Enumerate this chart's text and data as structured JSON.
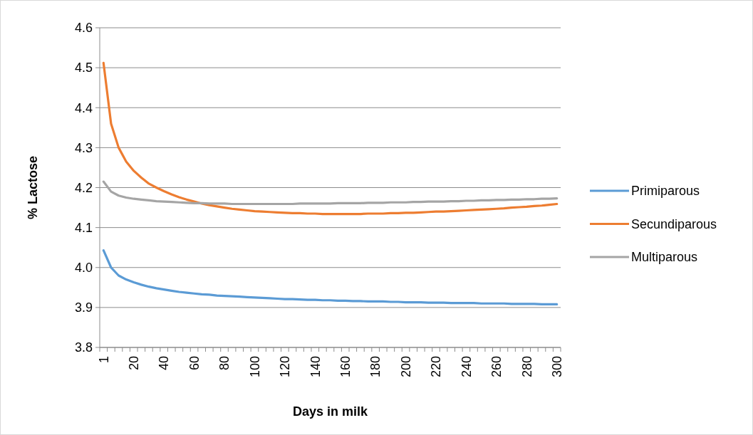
{
  "chart_data": {
    "type": "line",
    "xlabel": "Days in milk",
    "ylabel": "% Lactose",
    "categories": [
      "1",
      null,
      null,
      null,
      "20",
      null,
      null,
      null,
      "40",
      null,
      null,
      null,
      "60",
      null,
      null,
      null,
      "80",
      null,
      null,
      null,
      "100",
      null,
      null,
      null,
      "120",
      null,
      null,
      null,
      "140",
      null,
      null,
      null,
      "160",
      null,
      null,
      null,
      "180",
      null,
      null,
      null,
      "200",
      null,
      null,
      null,
      "220",
      null,
      null,
      null,
      "240",
      null,
      null,
      null,
      "260",
      null,
      null,
      null,
      "280",
      null,
      null,
      null,
      "300"
    ],
    "series": [
      {
        "name": "Primiparous",
        "color": "#5b9bd5",
        "values": [
          4.043,
          4.0,
          3.98,
          3.97,
          3.963,
          3.957,
          3.952,
          3.948,
          3.945,
          3.942,
          3.939,
          3.937,
          3.935,
          3.933,
          3.932,
          3.93,
          3.929,
          3.928,
          3.927,
          3.926,
          3.925,
          3.924,
          3.923,
          3.922,
          3.921,
          3.921,
          3.92,
          3.919,
          3.919,
          3.918,
          3.918,
          3.917,
          3.917,
          3.916,
          3.916,
          3.915,
          3.915,
          3.915,
          3.914,
          3.914,
          3.913,
          3.913,
          3.913,
          3.912,
          3.912,
          3.912,
          3.911,
          3.911,
          3.911,
          3.911,
          3.91,
          3.91,
          3.91,
          3.91,
          3.909,
          3.909,
          3.909,
          3.909,
          3.908,
          3.908,
          3.908
        ]
      },
      {
        "name": "Secundiparous",
        "color": "#ed7d31",
        "values": [
          4.512,
          4.36,
          4.3,
          4.265,
          4.242,
          4.225,
          4.21,
          4.2,
          4.191,
          4.183,
          4.176,
          4.17,
          4.165,
          4.16,
          4.156,
          4.153,
          4.15,
          4.147,
          4.145,
          4.143,
          4.141,
          4.14,
          4.139,
          4.138,
          4.137,
          4.136,
          4.136,
          4.135,
          4.135,
          4.134,
          4.134,
          4.134,
          4.134,
          4.134,
          4.134,
          4.135,
          4.135,
          4.135,
          4.136,
          4.136,
          4.137,
          4.137,
          4.138,
          4.139,
          4.14,
          4.14,
          4.141,
          4.142,
          4.143,
          4.144,
          4.145,
          4.146,
          4.147,
          4.148,
          4.15,
          4.151,
          4.152,
          4.154,
          4.155,
          4.157,
          4.159
        ]
      },
      {
        "name": "Multiparous",
        "color": "#a5a5a5",
        "values": [
          4.215,
          4.19,
          4.18,
          4.175,
          4.172,
          4.17,
          4.168,
          4.166,
          4.165,
          4.164,
          4.163,
          4.162,
          4.161,
          4.161,
          4.16,
          4.16,
          4.16,
          4.159,
          4.159,
          4.159,
          4.159,
          4.159,
          4.159,
          4.159,
          4.159,
          4.159,
          4.16,
          4.16,
          4.16,
          4.16,
          4.16,
          4.161,
          4.161,
          4.161,
          4.161,
          4.162,
          4.162,
          4.162,
          4.163,
          4.163,
          4.163,
          4.164,
          4.164,
          4.165,
          4.165,
          4.165,
          4.166,
          4.166,
          4.167,
          4.167,
          4.168,
          4.168,
          4.169,
          4.169,
          4.17,
          4.17,
          4.171,
          4.171,
          4.172,
          4.172,
          4.173
        ]
      }
    ],
    "ylim": [
      3.8,
      4.6
    ],
    "yticks": [
      {
        "value": 3.8,
        "label": "3.8"
      },
      {
        "value": 3.9,
        "label": "3.9"
      },
      {
        "value": 4.0,
        "label": "4.0"
      },
      {
        "value": 4.1,
        "label": "4.1"
      },
      {
        "value": 4.2,
        "label": "4.2"
      },
      {
        "value": 4.3,
        "label": "4.3"
      },
      {
        "value": 4.4,
        "label": "4.4"
      },
      {
        "value": 4.5,
        "label": "4.5"
      },
      {
        "value": 4.6,
        "label": "4.6"
      }
    ],
    "grid": "y",
    "legend": "right",
    "marker": "none",
    "line_style": "solid"
  }
}
